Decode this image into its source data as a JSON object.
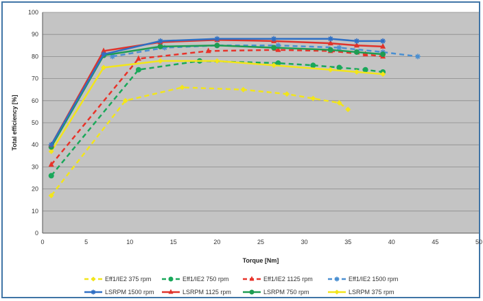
{
  "chart_data": {
    "type": "line",
    "title": "",
    "xlabel": "Torque [Nm]",
    "ylabel": "Total efficiency  [%]",
    "xlim": [
      0,
      50
    ],
    "ylim": [
      0,
      100
    ],
    "xticks": [
      "0",
      "5",
      "10",
      "15",
      "20",
      "25",
      "30",
      "35",
      "40",
      "45",
      "50"
    ],
    "yticks": [
      "0",
      "10",
      "20",
      "30",
      "40",
      "50",
      "60",
      "70",
      "80",
      "90",
      "100"
    ],
    "grid": "horizontal",
    "legend_position": "bottom",
    "series": [
      {
        "name": "Eff1/IE2 375 rpm",
        "color": "#f2e51a",
        "dashed": true,
        "marker": "diamond",
        "x": [
          1,
          9.5,
          16,
          23,
          28,
          31,
          34,
          35
        ],
        "y": [
          17,
          60,
          66,
          65,
          63,
          61,
          59,
          56
        ]
      },
      {
        "name": "Eff1/IE2 750 rpm",
        "color": "#19a85a",
        "dashed": true,
        "marker": "circle",
        "x": [
          1,
          11,
          18,
          27,
          31,
          34,
          37,
          39
        ],
        "y": [
          26,
          74,
          78,
          77,
          76,
          75,
          74,
          73
        ]
      },
      {
        "name": "Eff1/IE2 1125 rpm",
        "color": "#e8332a",
        "dashed": true,
        "marker": "triangle",
        "x": [
          1,
          11,
          19,
          27,
          33,
          37,
          39
        ],
        "y": [
          31,
          79,
          82.5,
          83,
          82.5,
          81,
          80
        ]
      },
      {
        "name": "Eff1/IE2 1500 rpm",
        "color": "#4a8fd1",
        "dashed": true,
        "marker": "star",
        "x": [
          8,
          14,
          20,
          27,
          34,
          39,
          43
        ],
        "y": [
          80,
          84,
          85,
          85,
          84,
          82,
          80
        ]
      },
      {
        "name": "LSRPM 1500 rpm",
        "color": "#2f6fc4",
        "dashed": false,
        "marker": "star",
        "x": [
          1,
          7,
          13.5,
          20,
          26.5,
          33,
          36,
          39
        ],
        "y": [
          40,
          81,
          87,
          88,
          88,
          88,
          87,
          87
        ]
      },
      {
        "name": "LSRPM 1125 rpm",
        "color": "#e0332b",
        "dashed": false,
        "marker": "triangle",
        "x": [
          1,
          7,
          13.5,
          20,
          26.5,
          33,
          36,
          39
        ],
        "y": [
          40,
          82.5,
          86.5,
          87.5,
          87,
          86,
          85,
          84.5
        ]
      },
      {
        "name": "LSRPM 750 rpm",
        "color": "#1e9c52",
        "dashed": false,
        "marker": "circle",
        "x": [
          1,
          7,
          13.5,
          20,
          26.5,
          33,
          36,
          39
        ],
        "y": [
          39,
          80.5,
          84.5,
          85,
          84,
          83,
          82,
          81
        ]
      },
      {
        "name": "LSRPM 375 rpm",
        "color": "#f2e51a",
        "dashed": false,
        "marker": "diamond",
        "x": [
          1,
          7,
          13.5,
          20,
          26.5,
          33,
          36,
          39
        ],
        "y": [
          37,
          75,
          78,
          78,
          76,
          74,
          73,
          72
        ]
      }
    ]
  }
}
